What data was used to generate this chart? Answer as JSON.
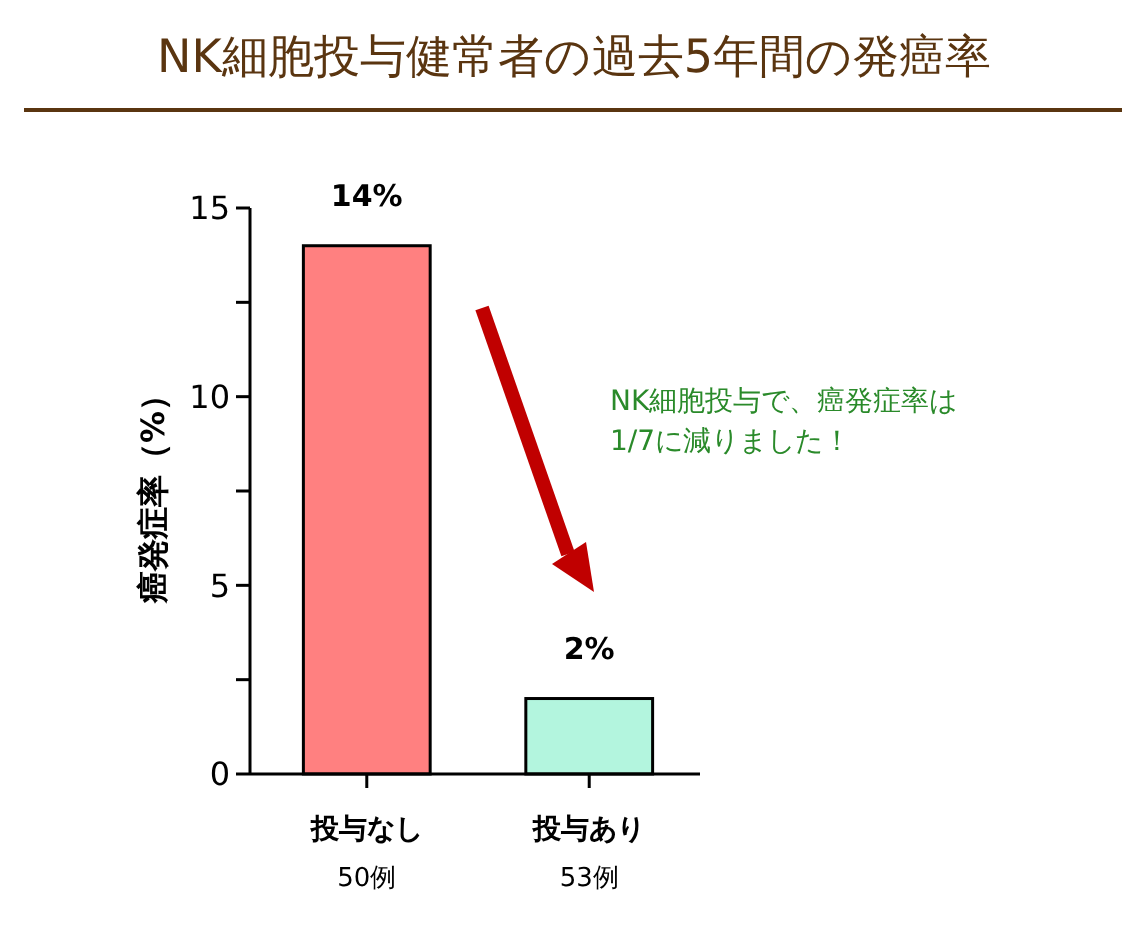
{
  "chart_data": {
    "type": "bar",
    "title": "NK細胞投与健常者の過去5年間の発癌率",
    "ylabel": "癌発症率（%）",
    "categories": [
      "投与なし\n50例",
      "投与あり\n53例"
    ],
    "values": [
      14,
      2
    ],
    "colors": [
      "#ff8080",
      "#b3f5de"
    ],
    "value_labels": [
      "14%",
      "2%"
    ],
    "ylim": [
      0,
      15
    ],
    "yticks": [
      0,
      {
        "value": 2.5,
        "label": null
      },
      5,
      {
        "value": 7.5,
        "label": null
      },
      10,
      {
        "value": 12.5,
        "label": null
      },
      15
    ],
    "annotations": [
      "NK細胞投与で、癌発症率は\n1/7に減りました！"
    ],
    "grid": false
  }
}
